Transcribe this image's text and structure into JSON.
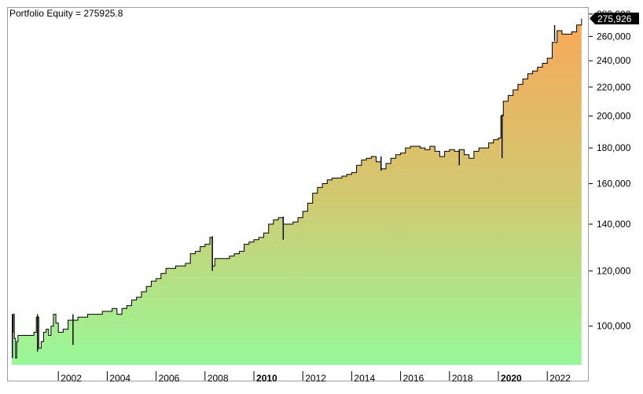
{
  "chart_data": {
    "type": "area",
    "title": "Portfolio Equity = 275925.8",
    "last_value_label": "275,926",
    "y_scale": "log",
    "ylim": [
      88000,
      285000
    ],
    "xlim": [
      2000.0,
      2023.6
    ],
    "y_ticks": [
      {
        "value": 100000,
        "label": "100,000"
      },
      {
        "value": 120000,
        "label": "120,000"
      },
      {
        "value": 140000,
        "label": "140,000"
      },
      {
        "value": 160000,
        "label": "160,000"
      },
      {
        "value": 180000,
        "label": "180,000"
      },
      {
        "value": 200000,
        "label": "200,000"
      },
      {
        "value": 220000,
        "label": "220,000"
      },
      {
        "value": 240000,
        "label": "240,000"
      },
      {
        "value": 260000,
        "label": "260,000"
      },
      {
        "value": 280000,
        "label": "280,000"
      }
    ],
    "x_ticks": [
      {
        "value": 2002,
        "label": "2002",
        "bold": false
      },
      {
        "value": 2004,
        "label": "2004",
        "bold": false
      },
      {
        "value": 2006,
        "label": "2006",
        "bold": false
      },
      {
        "value": 2008,
        "label": "2008",
        "bold": false
      },
      {
        "value": 2010,
        "label": "2010",
        "bold": true
      },
      {
        "value": 2012,
        "label": "2012",
        "bold": false
      },
      {
        "value": 2014,
        "label": "2014",
        "bold": false
      },
      {
        "value": 2016,
        "label": "2016",
        "bold": false
      },
      {
        "value": 2018,
        "label": "2018",
        "bold": false
      },
      {
        "value": 2020,
        "label": "2020",
        "bold": true
      },
      {
        "value": 2022,
        "label": "2022",
        "bold": false
      }
    ],
    "colors": {
      "fill_bottom": "#98f898",
      "fill_middle": "#d2c870",
      "fill_top": "#f8a858",
      "line": "#000000",
      "last_value_bg": "#000000",
      "border": "#a0a0a0"
    },
    "grid": false,
    "series": [
      {
        "x": [
          2000.1,
          2000.15,
          2000.2,
          2000.25,
          2000.3,
          2000.35,
          2000.5,
          2000.6,
          2001.0,
          2001.1,
          2001.2,
          2001.3,
          2001.4,
          2001.5,
          2001.6,
          2001.7,
          2001.8,
          2001.9,
          2002.0,
          2002.2,
          2002.4,
          2002.6,
          2002.8,
          2003.0,
          2003.2,
          2003.4,
          2003.6,
          2003.8,
          2004.0,
          2004.2,
          2004.4,
          2004.6,
          2004.8,
          2005.0,
          2005.2,
          2005.4,
          2005.6,
          2005.8,
          2006.0,
          2006.2,
          2006.4,
          2006.6,
          2006.8,
          2007.0,
          2007.2,
          2007.4,
          2007.6,
          2007.8,
          2008.0,
          2008.2,
          2008.3,
          2008.4,
          2008.6,
          2008.8,
          2009.0,
          2009.2,
          2009.4,
          2009.6,
          2009.8,
          2010.0,
          2010.2,
          2010.4,
          2010.6,
          2010.8,
          2011.0,
          2011.2,
          2011.4,
          2011.6,
          2011.8,
          2012.0,
          2012.2,
          2012.4,
          2012.6,
          2012.8,
          2013.0,
          2013.2,
          2013.4,
          2013.6,
          2013.8,
          2014.0,
          2014.2,
          2014.4,
          2014.6,
          2014.8,
          2015.0,
          2015.2,
          2015.4,
          2015.6,
          2015.8,
          2016.0,
          2016.2,
          2016.4,
          2016.6,
          2016.8,
          2017.0,
          2017.2,
          2017.4,
          2017.6,
          2017.8,
          2018.0,
          2018.2,
          2018.4,
          2018.6,
          2018.8,
          2019.0,
          2019.2,
          2019.4,
          2019.6,
          2019.8,
          2020.0,
          2020.1,
          2020.2,
          2020.4,
          2020.6,
          2020.8,
          2021.0,
          2021.2,
          2021.4,
          2021.6,
          2021.8,
          2022.0,
          2022.2,
          2022.4,
          2022.6,
          2022.8,
          2023.0,
          2023.2,
          2023.4
        ],
        "y": [
          98000,
          104000,
          96000,
          90000,
          95000,
          97000,
          97000,
          97000,
          98000,
          103000,
          93000,
          95000,
          98000,
          99000,
          97000,
          100000,
          104000,
          101000,
          98000,
          99000,
          102000,
          102000,
          103000,
          103000,
          104000,
          104000,
          104000,
          105000,
          105000,
          106000,
          104000,
          106000,
          107000,
          109000,
          110000,
          112000,
          114000,
          116000,
          117000,
          119000,
          121000,
          121000,
          122000,
          122000,
          123000,
          127000,
          128000,
          130000,
          131000,
          134000,
          122000,
          125000,
          125000,
          125000,
          126000,
          127000,
          128000,
          131000,
          132000,
          133000,
          134000,
          136000,
          140000,
          142000,
          143000,
          140000,
          140000,
          141000,
          143000,
          146000,
          150000,
          155000,
          158000,
          160000,
          162000,
          163000,
          163000,
          164000,
          165000,
          166000,
          170000,
          173000,
          174000,
          175000,
          172000,
          168000,
          171000,
          174000,
          176000,
          177000,
          180000,
          181000,
          181000,
          180000,
          179000,
          181000,
          178000,
          175000,
          178000,
          179000,
          178000,
          179000,
          176000,
          174000,
          178000,
          180000,
          180000,
          183000,
          185000,
          186000,
          200000,
          210000,
          214000,
          218000,
          222000,
          226000,
          230000,
          232000,
          235000,
          238000,
          242000,
          255000,
          265000,
          262000,
          262000,
          264000,
          270000,
          275926
        ],
        "spikes": [
          {
            "x": 2000.12,
            "lo": 90000,
            "hi": 104000
          },
          {
            "x": 2001.15,
            "lo": 92000,
            "hi": 104000
          },
          {
            "x": 2002.6,
            "lo": 94000,
            "hi": 104000
          },
          {
            "x": 2008.3,
            "lo": 120000,
            "hi": 134500
          },
          {
            "x": 2011.2,
            "lo": 133000,
            "hi": 143500
          },
          {
            "x": 2015.2,
            "lo": 167000,
            "hi": 175000
          },
          {
            "x": 2018.4,
            "lo": 170000,
            "hi": 179000
          },
          {
            "x": 2020.15,
            "lo": 174000,
            "hi": 201000
          },
          {
            "x": 2022.3,
            "lo": 256000,
            "hi": 270000
          }
        ]
      }
    ]
  }
}
